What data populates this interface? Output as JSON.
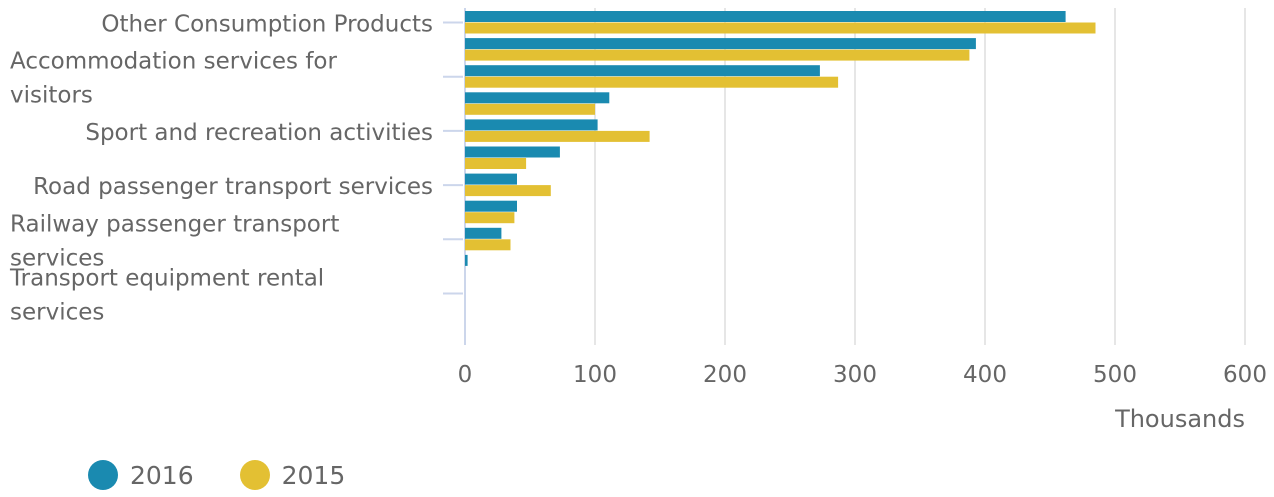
{
  "chart_data": {
    "type": "bar",
    "orientation": "horizontal",
    "categories": [
      "Other Consumption Products",
      "",
      "Accommodation services for visitors",
      "",
      "Sport and recreation activities",
      "",
      "Road passenger transport services",
      "",
      "Railway passenger transport services",
      "",
      "Transport equipment rental services"
    ],
    "category_labels": [
      {
        "index": 0,
        "lines": [
          "Other Consumption Products"
        ],
        "align": "right"
      },
      {
        "index": 2,
        "lines": [
          "Accommodation services for",
          "visitors"
        ],
        "align": "left"
      },
      {
        "index": 4,
        "lines": [
          "Sport and recreation activities"
        ],
        "align": "right"
      },
      {
        "index": 6,
        "lines": [
          "Road passenger transport services"
        ],
        "align": "right"
      },
      {
        "index": 8,
        "lines": [
          "Railway passenger transport",
          "services"
        ],
        "align": "left"
      },
      {
        "index": 10,
        "lines": [
          "Transport equipment rental",
          "services"
        ],
        "align": "left"
      }
    ],
    "series": [
      {
        "name": "2016",
        "color": "#1a8ab0",
        "values": [
          462,
          393,
          273,
          111,
          102,
          73,
          40,
          40,
          28,
          2,
          0
        ]
      },
      {
        "name": "2015",
        "color": "#e3c033",
        "values": [
          485,
          388,
          287,
          100,
          142,
          47,
          66,
          38,
          35,
          0,
          0
        ]
      }
    ],
    "xlim": [
      0,
      600
    ],
    "x_ticks": [
      "0",
      "100",
      "200",
      "300",
      "400",
      "500",
      "600"
    ],
    "xlabel": "Thousands",
    "grid": true,
    "legend_position": "bottom-left"
  }
}
